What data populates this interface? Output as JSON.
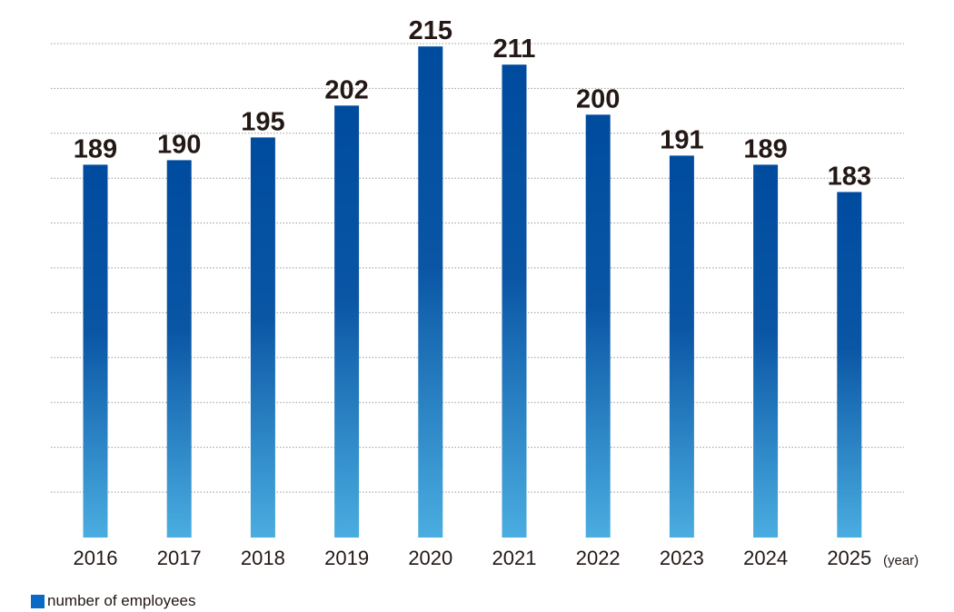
{
  "chart_data": {
    "type": "bar",
    "categories": [
      "2016",
      "2017",
      "2018",
      "2019",
      "2020",
      "2021",
      "2022",
      "2023",
      "2024",
      "2025"
    ],
    "series": [
      {
        "name": "number of employees",
        "values": [
          189,
          190,
          195,
          202,
          215,
          211,
          200,
          191,
          189,
          183
        ]
      }
    ],
    "x_unit_label": "(year)",
    "legend_position": "bottom-left",
    "grid": "horizontal dotted",
    "colors": {
      "bar_top": "#004B9E",
      "bar_bottom": "#4AADE0",
      "legend": "#0A6AC4",
      "text": "#231815",
      "grid": "#9a9a9a"
    }
  },
  "legend": {
    "label": "number of employees"
  }
}
